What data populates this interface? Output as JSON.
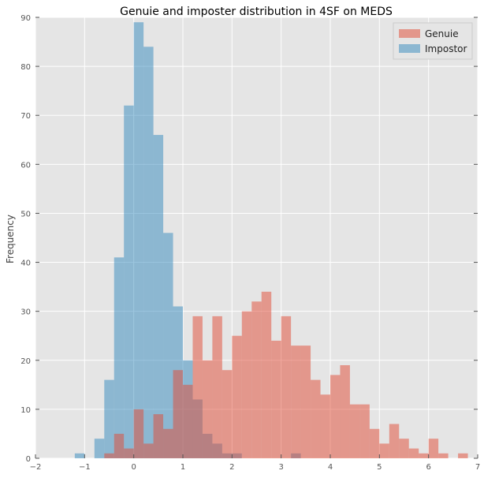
{
  "chart_data": {
    "type": "bar",
    "title": "Genuie and imposter distribution in 4SF on MEDS",
    "xlabel": "",
    "ylabel": "Frequency",
    "xlim": [
      -2,
      7
    ],
    "ylim": [
      0,
      90
    ],
    "xticks": [
      -2,
      -1,
      0,
      1,
      2,
      3,
      4,
      5,
      6,
      7
    ],
    "yticks": [
      0,
      10,
      20,
      30,
      40,
      50,
      60,
      70,
      80,
      90
    ],
    "grid": true,
    "legend_position": "top-right",
    "bin_width": 0.2,
    "series": [
      {
        "name": "Impostor",
        "color": "#348ABD",
        "bins": [
          {
            "x0": -1.2,
            "count": 1
          },
          {
            "x0": -0.8,
            "count": 4
          },
          {
            "x0": -0.6,
            "count": 16
          },
          {
            "x0": -0.4,
            "count": 41
          },
          {
            "x0": -0.2,
            "count": 72
          },
          {
            "x0": 0.0,
            "count": 89
          },
          {
            "x0": 0.2,
            "count": 84
          },
          {
            "x0": 0.4,
            "count": 66
          },
          {
            "x0": 0.6,
            "count": 46
          },
          {
            "x0": 0.8,
            "count": 31
          },
          {
            "x0": 1.0,
            "count": 20
          },
          {
            "x0": 1.2,
            "count": 12
          },
          {
            "x0": 1.4,
            "count": 5
          },
          {
            "x0": 1.6,
            "count": 3
          },
          {
            "x0": 1.8,
            "count": 1
          },
          {
            "x0": 2.0,
            "count": 1
          },
          {
            "x0": 3.2,
            "count": 1
          }
        ]
      },
      {
        "name": "Genuie",
        "color": "#E24A33",
        "bins": [
          {
            "x0": -0.6,
            "count": 1
          },
          {
            "x0": -0.4,
            "count": 5
          },
          {
            "x0": -0.2,
            "count": 2
          },
          {
            "x0": 0.0,
            "count": 10
          },
          {
            "x0": 0.2,
            "count": 3
          },
          {
            "x0": 0.4,
            "count": 9
          },
          {
            "x0": 0.6,
            "count": 6
          },
          {
            "x0": 0.8,
            "count": 18
          },
          {
            "x0": 1.0,
            "count": 15
          },
          {
            "x0": 1.2,
            "count": 29
          },
          {
            "x0": 1.4,
            "count": 20
          },
          {
            "x0": 1.6,
            "count": 29
          },
          {
            "x0": 1.8,
            "count": 18
          },
          {
            "x0": 2.0,
            "count": 25
          },
          {
            "x0": 2.2,
            "count": 30
          },
          {
            "x0": 2.4,
            "count": 32
          },
          {
            "x0": 2.6,
            "count": 34
          },
          {
            "x0": 2.8,
            "count": 24
          },
          {
            "x0": 3.0,
            "count": 29
          },
          {
            "x0": 3.2,
            "count": 23
          },
          {
            "x0": 3.4,
            "count": 23
          },
          {
            "x0": 3.6,
            "count": 16
          },
          {
            "x0": 3.8,
            "count": 13
          },
          {
            "x0": 4.0,
            "count": 17
          },
          {
            "x0": 4.2,
            "count": 19
          },
          {
            "x0": 4.4,
            "count": 11
          },
          {
            "x0": 4.6,
            "count": 11
          },
          {
            "x0": 4.8,
            "count": 6
          },
          {
            "x0": 5.0,
            "count": 3
          },
          {
            "x0": 5.2,
            "count": 7
          },
          {
            "x0": 5.4,
            "count": 4
          },
          {
            "x0": 5.6,
            "count": 2
          },
          {
            "x0": 5.8,
            "count": 1
          },
          {
            "x0": 6.0,
            "count": 4
          },
          {
            "x0": 6.2,
            "count": 1
          },
          {
            "x0": 6.6,
            "count": 1
          }
        ]
      }
    ],
    "legend_order": [
      "Genuie",
      "Impostor"
    ]
  }
}
